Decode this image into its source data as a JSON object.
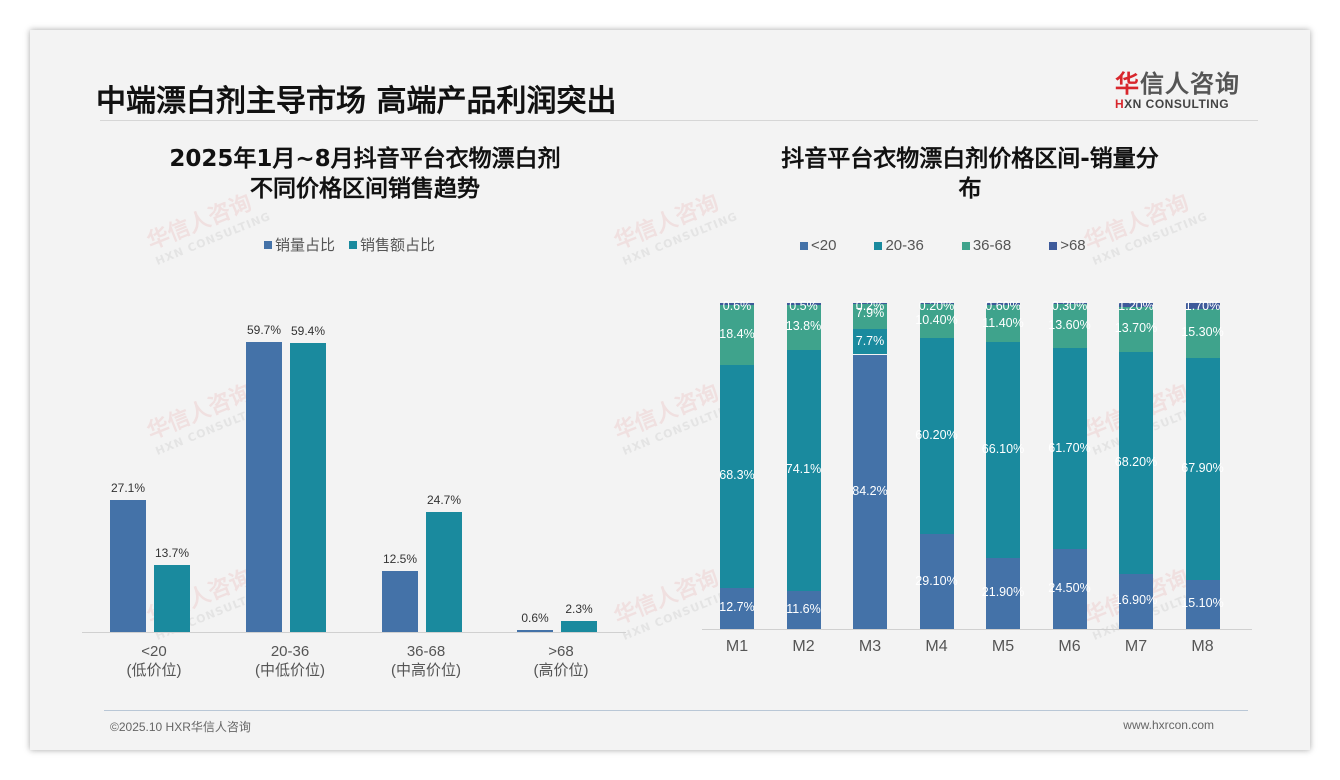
{
  "page": {
    "title": "中端漂白剂主导市场 高端产品利润突出",
    "logo": {
      "cn_accent": "华",
      "cn_rest": "信人咨询",
      "en_accent": "H",
      "en_rest": "XN CONSULTING"
    },
    "watermark": {
      "cn": "华信人咨询",
      "en": "HXN CONSULTING"
    },
    "footer": {
      "left": "©2025.10 HXR华信人咨询",
      "right": "www.hxrcon.com"
    }
  },
  "colors": {
    "lt20": "#4472a8",
    "c20_36": "#1a8a9e",
    "c36_68": "#3fa38c",
    "gt68": "#3e5a9a"
  },
  "left_chart": {
    "title_line1": "2025年1月~8月抖音平台衣物漂白剂",
    "title_line2": "不同价格区间销售趋势",
    "legend": [
      {
        "label": "销量占比",
        "color": "#4472a8"
      },
      {
        "label": "销售额占比",
        "color": "#1a8a9e"
      }
    ],
    "categories": [
      {
        "range": "<20",
        "desc": "(低价位)",
        "volume": "27.1%",
        "sales": "13.7%"
      },
      {
        "range": "20-36",
        "desc": "(中低价位)",
        "volume": "59.7%",
        "sales": "59.4%"
      },
      {
        "range": "36-68",
        "desc": "(中高价位)",
        "volume": "12.5%",
        "sales": "24.7%"
      },
      {
        "range": ">68",
        "desc": "(高价位)",
        "volume": "0.6%",
        "sales": "2.3%"
      }
    ]
  },
  "right_chart": {
    "title_line1": "抖音平台衣物漂白剂价格区间-销量分",
    "title_line2": "布",
    "legend": [
      {
        "label": "<20",
        "color": "#4472a8"
      },
      {
        "label": "20-36",
        "color": "#1a8a9e"
      },
      {
        "label": "36-68",
        "color": "#3fa38c"
      },
      {
        "label": ">68",
        "color": "#3e5a9a"
      }
    ],
    "months": [
      {
        "m": "M1",
        "lt20": "12.7%",
        "c20_36": "68.3%",
        "c36_68": "18.4%",
        "gt68": "0.6%"
      },
      {
        "m": "M2",
        "lt20": "11.6%",
        "c20_36": "74.1%",
        "c36_68": "13.8%",
        "gt68": "0.5%"
      },
      {
        "m": "M3",
        "lt20": "84.2%",
        "c20_36": "7.7%",
        "c36_68": "7.9%",
        "gt68": "0.2%"
      },
      {
        "m": "M4",
        "lt20": "29.10%",
        "c20_36": "60.20%",
        "c36_68": "10.40%",
        "gt68": "0.20%"
      },
      {
        "m": "M5",
        "lt20": "21.90%",
        "c20_36": "66.10%",
        "c36_68": "11.40%",
        "gt68": "0.60%"
      },
      {
        "m": "M6",
        "lt20": "24.50%",
        "c20_36": "61.70%",
        "c36_68": "13.60%",
        "gt68": "0.30%"
      },
      {
        "m": "M7",
        "lt20": "16.90%",
        "c20_36": "68.20%",
        "c36_68": "13.70%",
        "gt68": "1.20%"
      },
      {
        "m": "M8",
        "lt20": "15.10%",
        "c20_36": "67.90%",
        "c36_68": "15.30%",
        "gt68": "1.70%"
      }
    ]
  },
  "chart_data": [
    {
      "type": "bar",
      "title": "2025年1月~8月抖音平台衣物漂白剂 不同价格区间销售趋势",
      "categories": [
        "<20 (低价位)",
        "20-36 (中低价位)",
        "36-68 (中高价位)",
        ">68 (高价位)"
      ],
      "series": [
        {
          "name": "销量占比",
          "values": [
            27.1,
            59.7,
            12.5,
            0.6
          ]
        },
        {
          "name": "销售额占比",
          "values": [
            13.7,
            59.4,
            24.7,
            2.3
          ]
        }
      ],
      "xlabel": "",
      "ylabel": "",
      "ylim": [
        0,
        65
      ],
      "grid": false,
      "legend_position": "top"
    },
    {
      "type": "bar",
      "stacked": true,
      "title": "抖音平台衣物漂白剂价格区间-销量分布",
      "categories": [
        "M1",
        "M2",
        "M3",
        "M4",
        "M5",
        "M6",
        "M7",
        "M8"
      ],
      "series": [
        {
          "name": "<20",
          "values": [
            12.7,
            11.6,
            84.2,
            29.1,
            21.9,
            24.5,
            16.9,
            15.1
          ]
        },
        {
          "name": "20-36",
          "values": [
            68.3,
            74.1,
            7.7,
            60.2,
            66.1,
            61.7,
            68.2,
            67.9
          ]
        },
        {
          "name": "36-68",
          "values": [
            18.4,
            13.8,
            7.9,
            10.4,
            11.4,
            13.6,
            13.7,
            15.3
          ]
        },
        {
          "name": ">68",
          "values": [
            0.6,
            0.5,
            0.2,
            0.2,
            0.6,
            0.3,
            1.2,
            1.7
          ]
        }
      ],
      "xlabel": "",
      "ylabel": "",
      "ylim": [
        0,
        100
      ],
      "grid": false,
      "legend_position": "top"
    }
  ]
}
